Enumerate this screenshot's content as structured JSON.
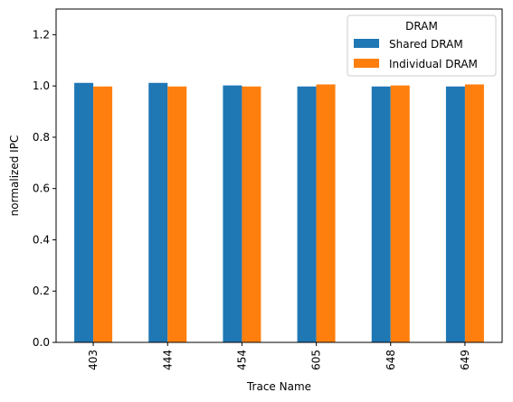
{
  "chart_data": {
    "type": "bar",
    "title": "",
    "xlabel": "Trace Name",
    "ylabel": "normalized IPC",
    "categories": [
      "403",
      "444",
      "454",
      "605",
      "648",
      "649"
    ],
    "series": [
      {
        "name": "Shared DRAM",
        "color": "#1f77b4",
        "values": [
          1.012,
          1.012,
          1.002,
          0.998,
          0.998,
          0.998
        ]
      },
      {
        "name": "Individual DRAM",
        "color": "#ff7f0e",
        "values": [
          0.998,
          0.998,
          0.998,
          1.006,
          1.002,
          1.006
        ]
      }
    ],
    "ylim": [
      0,
      1.3
    ],
    "yticks": [
      "0.0",
      "0.2",
      "0.4",
      "0.6",
      "0.8",
      "1.0",
      "1.2"
    ],
    "grid": false,
    "legend": {
      "title": "DRAM",
      "placement": "top-right"
    }
  }
}
